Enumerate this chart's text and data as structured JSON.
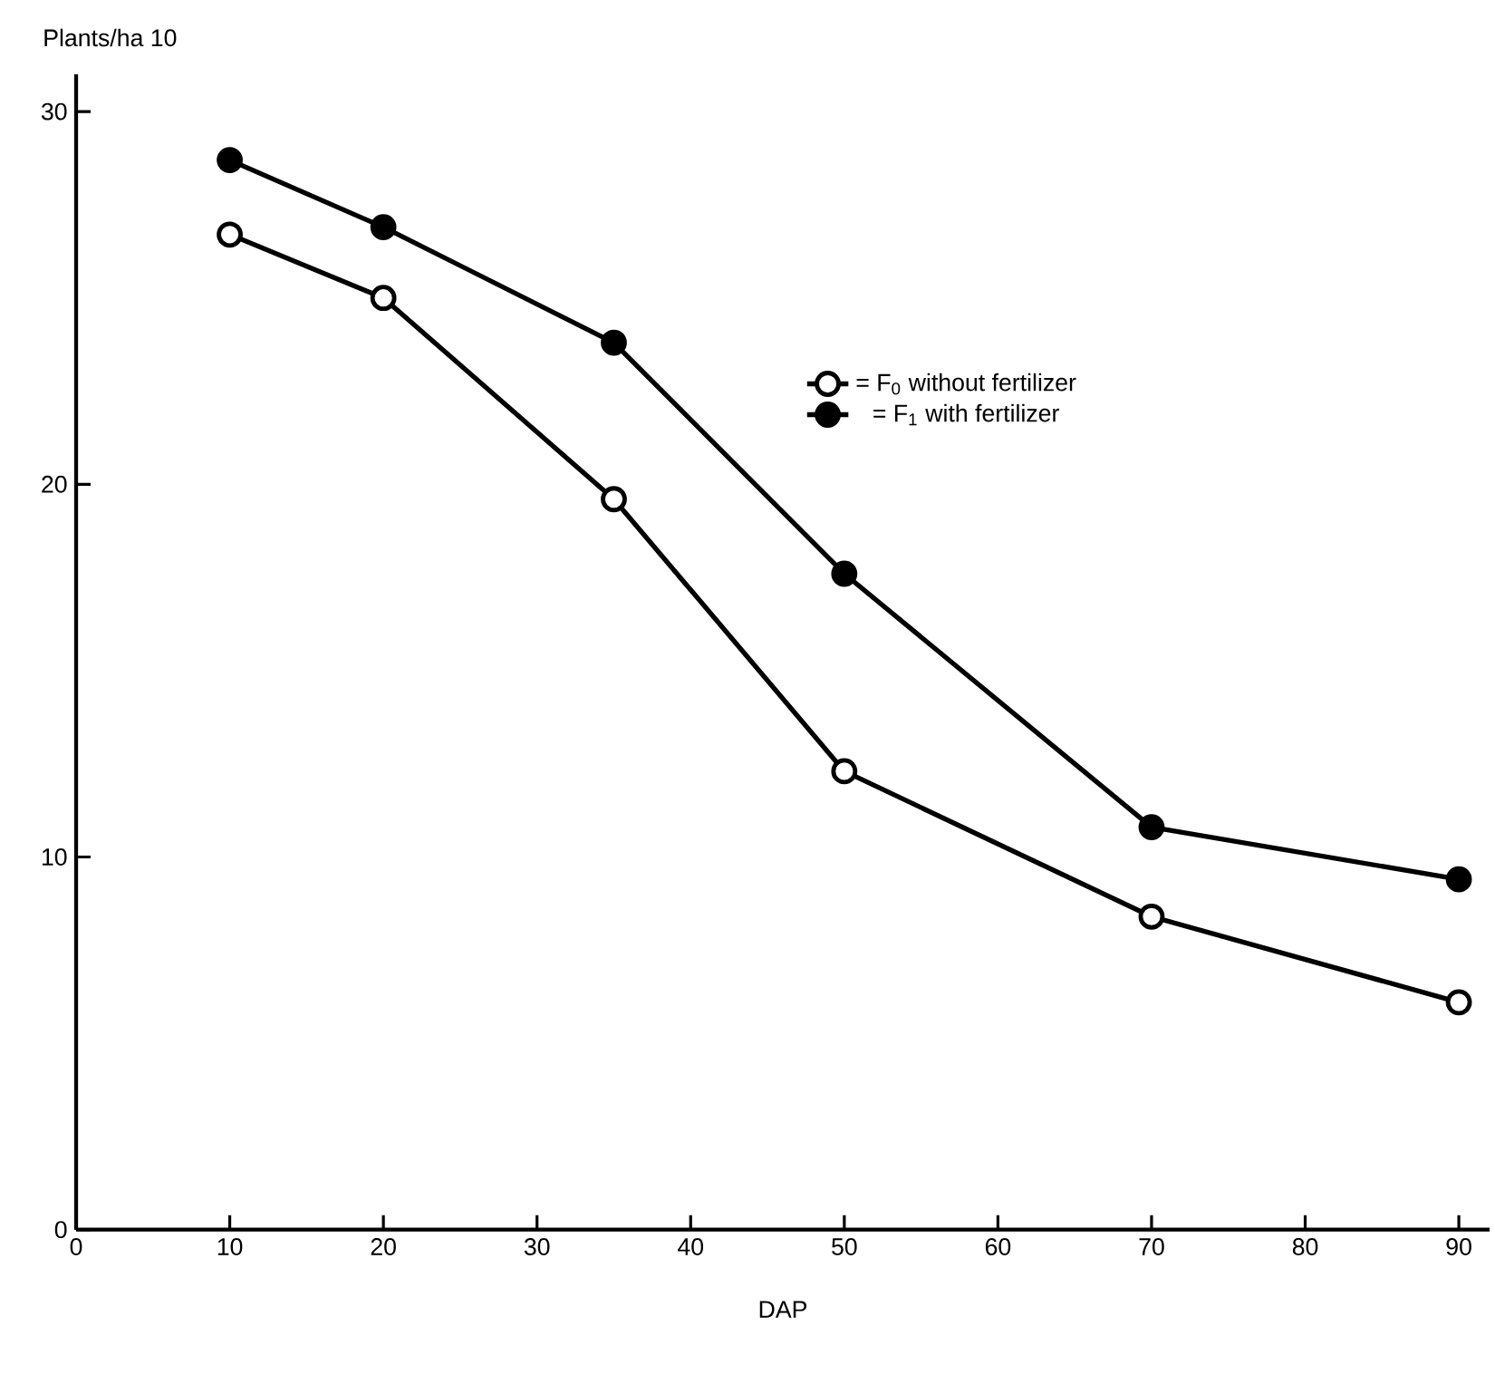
{
  "chart_data": {
    "type": "line",
    "xlabel": "DAP",
    "ylabel": "Plants/ha 10",
    "x": [
      10,
      20,
      35,
      50,
      70,
      90
    ],
    "series": [
      {
        "name": "= F$_{0}$ without fertilizer",
        "color": "#000000",
        "values": [
          26.7,
          25.0,
          19.6,
          12.3,
          8.4,
          6.1
        ]
      },
      {
        "name": "= F$_{1}$ with fertilizer",
        "color": "#000000",
        "values": [
          28.7,
          26.9,
          23.8,
          17.6,
          10.8,
          9.4
        ]
      }
    ],
    "xlim": [
      0,
      92
    ],
    "ylim": [
      0,
      31
    ],
    "xticks": [
      0,
      10,
      20,
      30,
      40,
      50,
      60,
      70,
      80,
      90
    ],
    "yticks": [
      0,
      10,
      20,
      30
    ],
    "marker": "circle",
    "line_style": "solid",
    "legend": "top right",
    "grid": false
  }
}
